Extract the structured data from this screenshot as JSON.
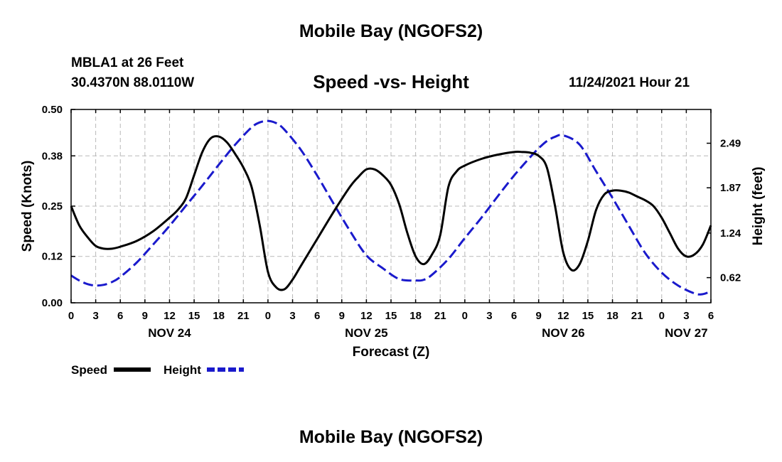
{
  "header": {
    "title": "Mobile Bay (NGOFS2)",
    "station": "MBLA1 at 26 Feet",
    "coordinates": "30.4370N  88.0110W",
    "datetime": "11/24/2021 Hour 21"
  },
  "footer": {
    "title": "Mobile Bay (NGOFS2)"
  },
  "chart_data": {
    "type": "line",
    "title": "Speed -vs- Height",
    "xlabel": "Forecast (Z)",
    "ylabel": "Speed (Knots)",
    "y2label": "Height (feet)",
    "xlim": [
      0,
      78
    ],
    "ylim": [
      0,
      0.5
    ],
    "y2lim": [
      0.27,
      2.96
    ],
    "x_ticks": [
      0,
      3,
      6,
      9,
      12,
      15,
      18,
      21,
      24,
      27,
      30,
      33,
      36,
      39,
      42,
      45,
      48,
      51,
      54,
      57,
      60,
      63,
      66,
      69,
      72,
      75,
      78
    ],
    "x_tick_labels": [
      "0",
      "3",
      "6",
      "9",
      "12",
      "15",
      "18",
      "21",
      "0",
      "3",
      "6",
      "9",
      "12",
      "15",
      "18",
      "21",
      "0",
      "3",
      "6",
      "9",
      "12",
      "15",
      "18",
      "21",
      "0",
      "3",
      "6"
    ],
    "y_ticks": [
      0.0,
      0.12,
      0.25,
      0.38,
      0.5
    ],
    "y_tick_labels": [
      "0.00",
      "0.12",
      "0.25",
      "0.38",
      "0.50"
    ],
    "y2_ticks": [
      0.62,
      1.24,
      1.87,
      2.49
    ],
    "y2_tick_labels": [
      "0.62",
      "1.24",
      "1.87",
      "2.49"
    ],
    "date_labels": [
      {
        "x": 12,
        "text": "NOV 24"
      },
      {
        "x": 36,
        "text": "NOV 25"
      },
      {
        "x": 60,
        "text": "NOV 26"
      },
      {
        "x": 75,
        "text": "NOV 27"
      }
    ],
    "grid": true,
    "legend_position": "bottom-left",
    "series": [
      {
        "name": "Speed",
        "axis": "left",
        "color": "#000000",
        "style": "solid",
        "x": [
          0,
          1,
          2,
          3,
          4,
          5,
          6,
          8,
          10,
          12,
          13,
          14,
          15,
          16,
          17,
          18,
          19,
          20,
          21,
          22,
          23,
          24,
          25,
          26,
          27,
          28,
          30,
          32,
          34,
          35,
          36,
          37,
          38,
          39,
          40,
          41,
          42,
          43,
          44,
          45,
          46,
          47,
          48,
          50,
          52,
          54,
          55,
          56,
          57,
          58,
          59,
          60,
          61,
          62,
          63,
          64,
          65,
          66,
          67,
          68,
          69,
          70,
          71,
          72,
          73,
          74,
          75,
          76,
          77,
          78
        ],
        "values": [
          0.25,
          0.2,
          0.17,
          0.147,
          0.14,
          0.14,
          0.145,
          0.16,
          0.185,
          0.22,
          0.24,
          0.27,
          0.33,
          0.39,
          0.425,
          0.43,
          0.415,
          0.385,
          0.35,
          0.3,
          0.2,
          0.08,
          0.04,
          0.035,
          0.06,
          0.095,
          0.165,
          0.235,
          0.3,
          0.325,
          0.345,
          0.345,
          0.33,
          0.305,
          0.255,
          0.18,
          0.12,
          0.1,
          0.125,
          0.175,
          0.3,
          0.34,
          0.355,
          0.372,
          0.383,
          0.39,
          0.39,
          0.388,
          0.38,
          0.35,
          0.25,
          0.13,
          0.085,
          0.1,
          0.16,
          0.24,
          0.28,
          0.29,
          0.29,
          0.285,
          0.275,
          0.265,
          0.25,
          0.22,
          0.18,
          0.14,
          0.12,
          0.125,
          0.15,
          0.2
        ]
      },
      {
        "name": "Height",
        "axis": "right",
        "color": "#1a1acc",
        "style": "dashed",
        "x": [
          0,
          1,
          2,
          3,
          4,
          5,
          6,
          8,
          10,
          12,
          14,
          16,
          18,
          20,
          22,
          23,
          24,
          25,
          26,
          28,
          30,
          32,
          34,
          36,
          38,
          40,
          42,
          43,
          44,
          46,
          48,
          50,
          52,
          54,
          56,
          57,
          58,
          59,
          60,
          62,
          64,
          66,
          68,
          70,
          72,
          74,
          76,
          77,
          78
        ],
        "values": [
          0.65,
          0.58,
          0.53,
          0.51,
          0.52,
          0.56,
          0.63,
          0.83,
          1.08,
          1.34,
          1.62,
          1.9,
          2.19,
          2.47,
          2.71,
          2.78,
          2.8,
          2.77,
          2.68,
          2.4,
          2.04,
          1.65,
          1.27,
          0.93,
          0.75,
          0.6,
          0.58,
          0.59,
          0.66,
          0.88,
          1.17,
          1.45,
          1.75,
          2.04,
          2.3,
          2.42,
          2.52,
          2.58,
          2.6,
          2.47,
          2.1,
          1.73,
          1.34,
          0.96,
          0.69,
          0.51,
          0.4,
          0.39,
          0.43
        ]
      }
    ]
  },
  "legend": {
    "speed_label": "Speed",
    "height_label": "Height"
  }
}
